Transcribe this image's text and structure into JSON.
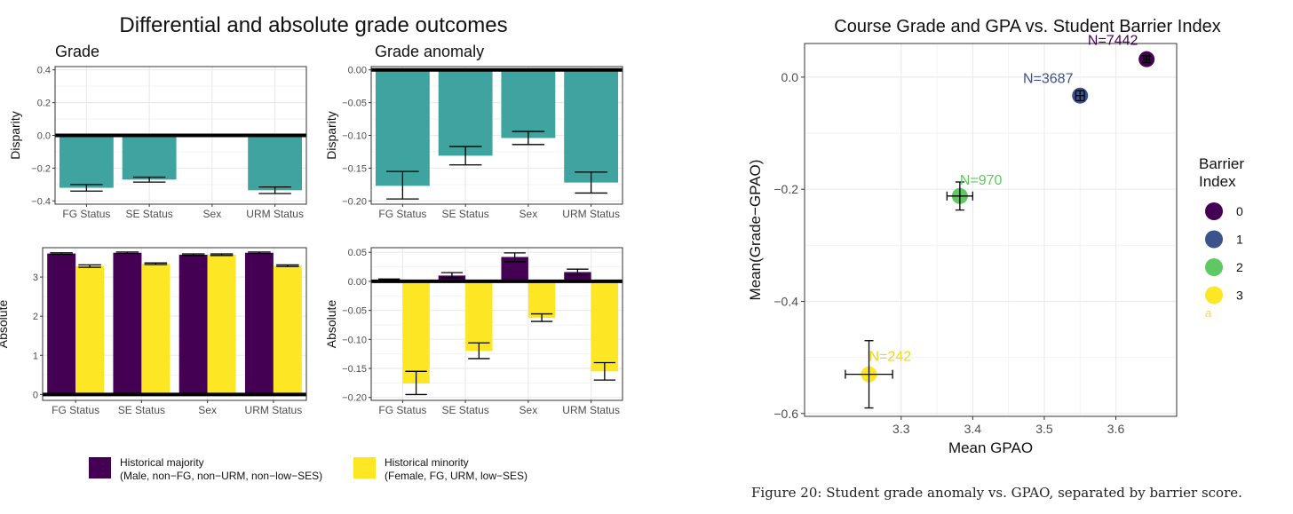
{
  "left_figure": {
    "title": "Differential and absolute grade outcomes",
    "legend": [
      {
        "line1": "Historical majority",
        "line2": "(Male, non−FG, non−URM, non−low−SES)",
        "color": "#440154"
      },
      {
        "line1": "Historical minority",
        "line2": "(Female, FG, URM, low−SES)",
        "color": "#fde725"
      }
    ]
  },
  "right_figure": {
    "caption": "Figure 20: Student grade anomaly vs. GPAO, separated by barrier score.",
    "legend_title_line1": "Barrier",
    "legend_title_line2": "Index",
    "legend_stray_mark": "a"
  },
  "colors": {
    "teal": "#3fa3a0",
    "majority": "#440154",
    "minority": "#fde725"
  },
  "chart_data": [
    {
      "type": "bar",
      "title": "Grade",
      "xlabel": "",
      "ylabel": "Disparity",
      "categories": [
        "FG Status",
        "SE Status",
        "Sex",
        "URM Status"
      ],
      "ylim": [
        -0.42,
        0.42
      ],
      "yticks": [
        -0.4,
        -0.2,
        0.0,
        0.2,
        0.4
      ],
      "ytick_labels": [
        "−0.4",
        "−0.2",
        "0.0",
        "0.2",
        "0.4"
      ],
      "series": [
        {
          "values": [
            -0.32,
            -0.27,
            0.01,
            -0.335
          ],
          "err_low": [
            -0.34,
            -0.285,
            0.0,
            -0.355
          ],
          "err_high": [
            -0.3,
            -0.255,
            0.0,
            -0.315
          ]
        }
      ]
    },
    {
      "type": "bar",
      "title": "Grade anomaly",
      "xlabel": "",
      "ylabel": "Disparity",
      "categories": [
        "FG Status",
        "SE Status",
        "Sex",
        "URM Status"
      ],
      "ylim": [
        -0.205,
        0.005
      ],
      "yticks": [
        0.0,
        -0.05,
        -0.1,
        -0.15,
        -0.2
      ],
      "ytick_labels": [
        "0.00",
        "−0.05",
        "−0.10",
        "−0.15",
        "−0.20"
      ],
      "series": [
        {
          "values": [
            -0.177,
            -0.131,
            -0.104,
            -0.172
          ],
          "err_low": [
            -0.197,
            -0.145,
            -0.114,
            -0.188
          ],
          "err_high": [
            -0.155,
            -0.117,
            -0.094,
            -0.156
          ]
        }
      ]
    },
    {
      "type": "bar",
      "title": "",
      "xlabel": "",
      "ylabel": "Absolute",
      "categories": [
        "FG Status",
        "SE Status",
        "Sex",
        "URM Status"
      ],
      "ylim": [
        -0.15,
        3.75
      ],
      "yticks": [
        0,
        1,
        2,
        3
      ],
      "ytick_labels": [
        "0",
        "1",
        "2",
        "3"
      ],
      "series": [
        {
          "name": "Historical majority",
          "values": [
            3.6,
            3.62,
            3.57,
            3.62
          ],
          "err_low": [
            3.58,
            3.6,
            3.55,
            3.6
          ],
          "err_high": [
            3.62,
            3.64,
            3.59,
            3.64
          ]
        },
        {
          "name": "Historical minority",
          "values": [
            3.28,
            3.34,
            3.57,
            3.29
          ],
          "err_low": [
            3.25,
            3.32,
            3.55,
            3.27
          ],
          "err_high": [
            3.31,
            3.36,
            3.59,
            3.31
          ]
        }
      ]
    },
    {
      "type": "bar",
      "title": "",
      "xlabel": "",
      "ylabel": "Absolute",
      "categories": [
        "FG Status",
        "SE Status",
        "Sex",
        "URM Status"
      ],
      "ylim": [
        -0.205,
        0.058
      ],
      "yticks": [
        0.05,
        0.0,
        -0.05,
        -0.1,
        -0.15,
        -0.2
      ],
      "ytick_labels": [
        "0.05",
        "0.00",
        "−0.05",
        "−0.10",
        "−0.15",
        "−0.20"
      ],
      "series": [
        {
          "name": "Historical majority",
          "values": [
            0.002,
            0.01,
            0.042,
            0.016
          ],
          "err_low": [
            0.0,
            0.006,
            0.034,
            0.011
          ],
          "err_high": [
            0.004,
            0.015,
            0.049,
            0.021
          ]
        },
        {
          "name": "Historical minority",
          "values": [
            -0.176,
            -0.12,
            -0.063,
            -0.155
          ],
          "err_low": [
            -0.195,
            -0.133,
            -0.069,
            -0.17
          ],
          "err_high": [
            -0.155,
            -0.106,
            -0.056,
            -0.14
          ]
        }
      ]
    },
    {
      "type": "scatter",
      "title": "Course Grade and GPA vs. Student Barrier Index",
      "xlabel": "Mean GPAO",
      "ylabel": "Mean(Grade−GPAO)",
      "xlim": [
        3.165,
        3.685
      ],
      "ylim": [
        -0.605,
        0.06
      ],
      "xticks": [
        3.3,
        3.4,
        3.5,
        3.6
      ],
      "xtick_labels": [
        "3.3",
        "3.4",
        "3.5",
        "3.6"
      ],
      "yticks": [
        0.0,
        -0.2,
        -0.4,
        -0.6
      ],
      "ytick_labels": [
        "0.0",
        "−0.2",
        "−0.4",
        "−0.6"
      ],
      "legend_position": "right",
      "points": [
        {
          "index": "0",
          "x": 3.643,
          "y": 0.032,
          "xerr": 0.004,
          "yerr": 0.006,
          "label": "N=7442",
          "color": "#440154"
        },
        {
          "index": "1",
          "x": 3.55,
          "y": -0.033,
          "xerr": 0.006,
          "yerr": 0.009,
          "label": "N=3687",
          "color": "#3b528b"
        },
        {
          "index": "2",
          "x": 3.382,
          "y": -0.212,
          "xerr": 0.018,
          "yerr": 0.025,
          "label": "N=970",
          "color": "#5ec962"
        },
        {
          "index": "3",
          "x": 3.255,
          "y": -0.53,
          "xerr": 0.033,
          "yerr": 0.06,
          "label": "N=242",
          "color": "#fde725"
        }
      ]
    }
  ]
}
